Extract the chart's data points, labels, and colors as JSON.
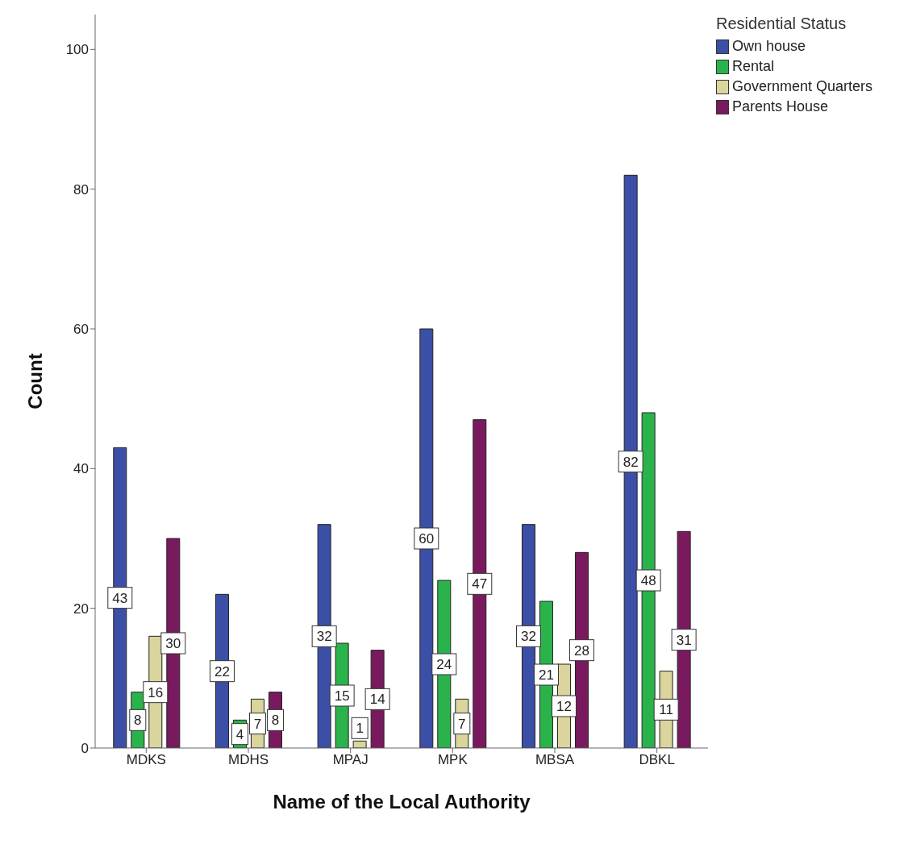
{
  "chart_data": {
    "type": "bar",
    "xlabel": "Name of the Local Authority",
    "ylabel": "Count",
    "legend_title": "Residential Status",
    "categories": [
      "MDKS",
      "MDHS",
      "MPAJ",
      "MPK",
      "MBSA",
      "DBKL"
    ],
    "series": [
      {
        "name": "Own house",
        "color": "#3b4fa6",
        "values": [
          43,
          22,
          32,
          60,
          32,
          82
        ]
      },
      {
        "name": "Rental",
        "color": "#2bb34b",
        "values": [
          8,
          4,
          15,
          24,
          21,
          48
        ]
      },
      {
        "name": "Government Quarters",
        "color": "#d9d59c",
        "values": [
          16,
          7,
          1,
          7,
          12,
          11
        ]
      },
      {
        "name": "Parents House",
        "color": "#7a1a5e",
        "values": [
          30,
          8,
          14,
          47,
          28,
          31
        ]
      }
    ],
    "ylim": [
      0,
      105
    ],
    "yticks": [
      0,
      20,
      40,
      60,
      80,
      100
    ],
    "grid": false,
    "legend": "top right",
    "data_labels": true
  }
}
